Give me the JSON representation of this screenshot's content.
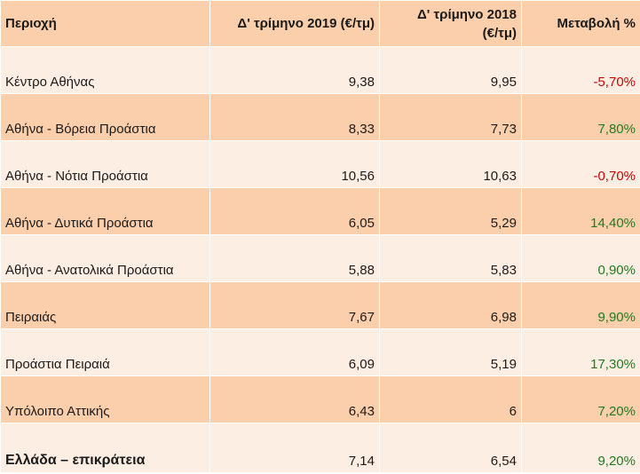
{
  "headers": {
    "region": "Περιοχή",
    "q4_2019": "Δ' τρίμηνο 2019 (€/τμ)",
    "q4_2018_line1": "Δ' τρίμηνο 2018",
    "q4_2018_line2": "(€/τμ)",
    "change": "Μεταβολή %"
  },
  "rows": [
    {
      "region": "Κέντρο Αθήνας",
      "q4_2019": "9,38",
      "q4_2018": "9,95",
      "change": "-5,70%",
      "trend": "negative"
    },
    {
      "region": "Αθήνα - Βόρεια Προάστια",
      "q4_2019": "8,33",
      "q4_2018": "7,73",
      "change": "7,80%",
      "trend": "positive"
    },
    {
      "region": "Αθήνα - Νότια Προάστια",
      "q4_2019": "10,56",
      "q4_2018": "10,63",
      "change": "-0,70%",
      "trend": "negative"
    },
    {
      "region": "Αθήνα - Δυτικά Προάστια",
      "q4_2019": "6,05",
      "q4_2018": "5,29",
      "change": "14,40%",
      "trend": "positive"
    },
    {
      "region": "Αθήνα - Ανατολικά Προάστια",
      "q4_2019": "5,88",
      "q4_2018": "5,83",
      "change": "0,90%",
      "trend": "positive"
    },
    {
      "region": "Πειραιάς",
      "q4_2019": "7,67",
      "q4_2018": "6,98",
      "change": "9,90%",
      "trend": "positive"
    },
    {
      "region": "Προάστια Πειραιά",
      "q4_2019": "6,09",
      "q4_2018": "5,19",
      "change": "17,30%",
      "trend": "positive"
    },
    {
      "region": "Υπόλοιπο Αττικής",
      "q4_2019": "6,43",
      "q4_2018": "6",
      "change": "7,20%",
      "trend": "positive"
    },
    {
      "region": "Ελλάδα – επικράτεια",
      "q4_2019": "7,14",
      "q4_2018": "6,54",
      "change": "9,20%",
      "trend": "positive"
    }
  ],
  "colors": {
    "header_bg": "#fbcfac",
    "row_light": "#fdeee4",
    "row_dark": "#fbcfac",
    "negative": "#cc0000",
    "positive": "#1f7a1f"
  }
}
